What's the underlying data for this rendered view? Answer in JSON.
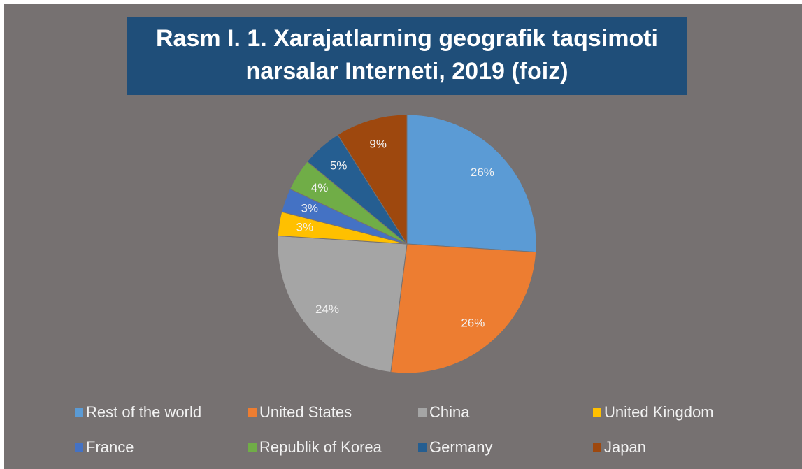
{
  "chart_data": {
    "type": "pie",
    "title": [
      "Rasm I. 1. Xarajatlarning geografik taqsimoti",
      "narsalar Interneti, 2019 (foiz)"
    ],
    "categories": [
      "Rest of the world",
      "United States",
      "China",
      "United Kingdom",
      "France",
      "Republik of Korea",
      "Germany",
      "Japan"
    ],
    "values": [
      26,
      26,
      24,
      3,
      3,
      4,
      5,
      9
    ],
    "value_labels": [
      "26%",
      "26%",
      "24%",
      "3%",
      "3%",
      "4%",
      "5%",
      "9%"
    ],
    "colors": [
      "#5b9bd5",
      "#ed7d31",
      "#a5a5a5",
      "#ffc000",
      "#4472c4",
      "#70ad47",
      "#255e91",
      "#9e480e"
    ],
    "legend": "bottom"
  }
}
